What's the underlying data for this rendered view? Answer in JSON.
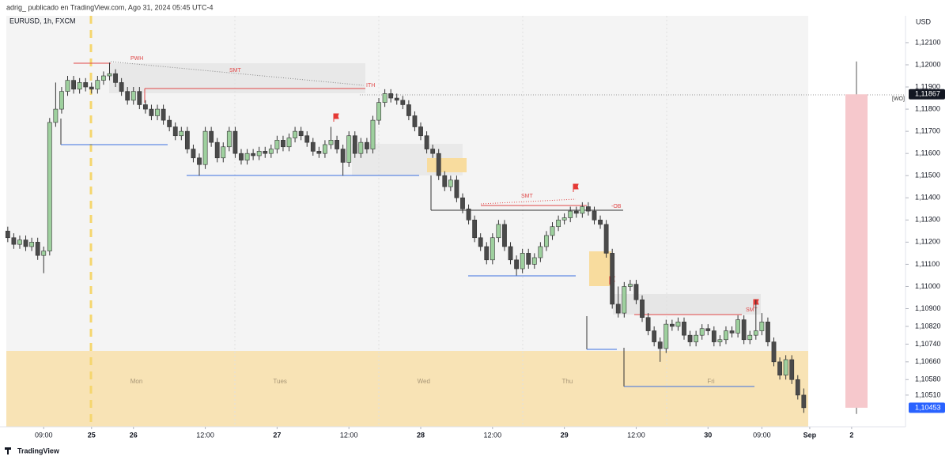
{
  "header": "adrig_ publicado en TradingView.com, Ago 31, 2024 05:45 UTC-4",
  "footer": "TradingView",
  "chart_data": {
    "type": "candlestick",
    "title": "EURUSD, 1h, FXCM",
    "currency": "USD",
    "ylim": [
      1.10367,
      1.12221
    ],
    "yticks": [
      {
        "value": 1.121,
        "label": "1,12100"
      },
      {
        "value": 1.12,
        "label": "1,12000"
      },
      {
        "value": 1.119,
        "label": "1,11900"
      },
      {
        "value": 1.118,
        "label": "1,11800"
      },
      {
        "value": 1.117,
        "label": "1,11700"
      },
      {
        "value": 1.116,
        "label": "1,11600"
      },
      {
        "value": 1.115,
        "label": "1,11500"
      },
      {
        "value": 1.114,
        "label": "1,11400"
      },
      {
        "value": 1.113,
        "label": "1,11300"
      },
      {
        "value": 1.112,
        "label": "1,11200"
      },
      {
        "value": 1.111,
        "label": "1,11100"
      },
      {
        "value": 1.11,
        "label": "1,11000"
      },
      {
        "value": 1.109,
        "label": "1,10900"
      },
      {
        "value": 1.1082,
        "label": "1,10820"
      },
      {
        "value": 1.1074,
        "label": "1,10740"
      },
      {
        "value": 1.1066,
        "label": "1,10660"
      },
      {
        "value": 1.1058,
        "label": "1,10580"
      },
      {
        "value": 1.1051,
        "label": "1,10510"
      }
    ],
    "xlim": [
      -1.3,
      150
    ],
    "xticks": [
      {
        "value": 6,
        "label": "09:00"
      },
      {
        "value": 14,
        "label": "25"
      },
      {
        "value": 21,
        "label": "26"
      },
      {
        "value": 33,
        "label": "12:00"
      },
      {
        "value": 45,
        "label": "27"
      },
      {
        "value": 57,
        "label": "12:00"
      },
      {
        "value": 69,
        "label": "28"
      },
      {
        "value": 81,
        "label": "12:00"
      },
      {
        "value": 93,
        "label": "29"
      },
      {
        "value": 105,
        "label": "12:00"
      },
      {
        "value": 117,
        "label": "30"
      },
      {
        "value": 126,
        "label": "09:00"
      },
      {
        "value": 134,
        "label": "Sep"
      },
      {
        "value": 141,
        "label": "2"
      }
    ],
    "day_labels": [
      {
        "value": 21.5,
        "label": "Mon"
      },
      {
        "value": 45.5,
        "label": "Tues"
      },
      {
        "value": 69.5,
        "label": "Wed"
      },
      {
        "value": 93.5,
        "label": "Thu"
      },
      {
        "value": 117.5,
        "label": "Fri"
      }
    ],
    "annotations": [
      "PWH",
      "SMT",
      "ITH",
      "SMT",
      "-OB",
      "SMT",
      "[WO]"
    ],
    "bull_color": "#9ed09e",
    "bear_color": "#4a4a4a",
    "price_labels": [
      {
        "value": 1.11867,
        "label": "1,11867",
        "color": "#131722"
      },
      {
        "value": 1.10453,
        "label": "1,10453",
        "color": "#2962ff"
      }
    ],
    "weekly_candle": {
      "open": 1.11867,
      "high": 1.12015,
      "low": 1.10425,
      "close": 1.10453,
      "color": "#f6c8cc"
    },
    "ohlc": [
      [
        1.1125,
        1.1127,
        1.112,
        1.1122
      ],
      [
        1.1122,
        1.1124,
        1.1117,
        1.1119
      ],
      [
        1.1119,
        1.1123,
        1.1117,
        1.1121
      ],
      [
        1.1121,
        1.1123,
        1.1116,
        1.1118
      ],
      [
        1.1118,
        1.1122,
        1.1116,
        1.112
      ],
      [
        1.112,
        1.1122,
        1.1112,
        1.1114
      ],
      [
        1.1114,
        1.1118,
        1.1106,
        1.1116
      ],
      [
        1.1116,
        1.1176,
        1.1114,
        1.1174
      ],
      [
        1.1174,
        1.1192,
        1.1172,
        1.118
      ],
      [
        1.118,
        1.119,
        1.1178,
        1.1188
      ],
      [
        1.1188,
        1.1195,
        1.1186,
        1.1193
      ],
      [
        1.1193,
        1.1195,
        1.1187,
        1.1189
      ],
      [
        1.1189,
        1.1194,
        1.1187,
        1.1192
      ],
      [
        1.1192,
        1.1194,
        1.1188,
        1.119
      ],
      [
        1.119,
        1.1192,
        1.1187,
        1.1189
      ],
      [
        1.1189,
        1.1195,
        1.1187,
        1.1193
      ],
      [
        1.1193,
        1.1197,
        1.1191,
        1.1195
      ],
      [
        1.1195,
        1.1201,
        1.1193,
        1.1196
      ],
      [
        1.1196,
        1.1198,
        1.119,
        1.1192
      ],
      [
        1.1192,
        1.1194,
        1.1186,
        1.1188
      ],
      [
        1.1188,
        1.119,
        1.1182,
        1.1184
      ],
      [
        1.1184,
        1.119,
        1.1182,
        1.1188
      ],
      [
        1.1188,
        1.119,
        1.118,
        1.1182
      ],
      [
        1.1182,
        1.1184,
        1.1178,
        1.118
      ],
      [
        1.118,
        1.1182,
        1.1175,
        1.1177
      ],
      [
        1.1177,
        1.1182,
        1.1175,
        1.118
      ],
      [
        1.118,
        1.1182,
        1.1173,
        1.1175
      ],
      [
        1.1175,
        1.1177,
        1.117,
        1.1172
      ],
      [
        1.1172,
        1.1174,
        1.1166,
        1.1168
      ],
      [
        1.1168,
        1.1172,
        1.1166,
        1.117
      ],
      [
        1.117,
        1.1172,
        1.116,
        1.1162
      ],
      [
        1.1162,
        1.1164,
        1.1156,
        1.1158
      ],
      [
        1.1158,
        1.116,
        1.115,
        1.1155
      ],
      [
        1.1155,
        1.1172,
        1.1153,
        1.117
      ],
      [
        1.117,
        1.1172,
        1.1163,
        1.1165
      ],
      [
        1.1165,
        1.1167,
        1.1156,
        1.1158
      ],
      [
        1.1158,
        1.1165,
        1.1156,
        1.1163
      ],
      [
        1.1163,
        1.1172,
        1.1161,
        1.117
      ],
      [
        1.117,
        1.1172,
        1.1158,
        1.116
      ],
      [
        1.116,
        1.1162,
        1.1155,
        1.1157
      ],
      [
        1.1157,
        1.1162,
        1.1155,
        1.116
      ],
      [
        1.116,
        1.1162,
        1.1157,
        1.1159
      ],
      [
        1.1159,
        1.1163,
        1.1157,
        1.1161
      ],
      [
        1.1161,
        1.1163,
        1.1158,
        1.116
      ],
      [
        1.116,
        1.1164,
        1.1158,
        1.1162
      ],
      [
        1.1162,
        1.1168,
        1.116,
        1.1166
      ],
      [
        1.1166,
        1.1168,
        1.1161,
        1.1163
      ],
      [
        1.1163,
        1.1169,
        1.1161,
        1.1167
      ],
      [
        1.1167,
        1.1172,
        1.1165,
        1.117
      ],
      [
        1.117,
        1.1172,
        1.1166,
        1.1168
      ],
      [
        1.1168,
        1.117,
        1.1163,
        1.1165
      ],
      [
        1.1165,
        1.1167,
        1.1159,
        1.1161
      ],
      [
        1.1161,
        1.1163,
        1.1158,
        1.116
      ],
      [
        1.116,
        1.1166,
        1.1158,
        1.1164
      ],
      [
        1.1164,
        1.1172,
        1.1162,
        1.1166
      ],
      [
        1.1166,
        1.1168,
        1.116,
        1.1162
      ],
      [
        1.1162,
        1.1164,
        1.115,
        1.1156
      ],
      [
        1.1156,
        1.117,
        1.1154,
        1.1168
      ],
      [
        1.1168,
        1.117,
        1.1158,
        1.116
      ],
      [
        1.116,
        1.1167,
        1.1158,
        1.1165
      ],
      [
        1.1165,
        1.1167,
        1.116,
        1.1162
      ],
      [
        1.1162,
        1.1177,
        1.116,
        1.1175
      ],
      [
        1.1175,
        1.1185,
        1.1173,
        1.1183
      ],
      [
        1.1183,
        1.1189,
        1.1181,
        1.1187
      ],
      [
        1.1187,
        1.1189,
        1.1183,
        1.1185
      ],
      [
        1.1185,
        1.1187,
        1.1182,
        1.1184
      ],
      [
        1.1184,
        1.1186,
        1.118,
        1.1182
      ],
      [
        1.1182,
        1.1184,
        1.1175,
        1.1177
      ],
      [
        1.1177,
        1.1179,
        1.117,
        1.1172
      ],
      [
        1.1172,
        1.1174,
        1.1166,
        1.1168
      ],
      [
        1.1168,
        1.117,
        1.116,
        1.1162
      ],
      [
        1.1162,
        1.1164,
        1.1158,
        1.116
      ],
      [
        1.116,
        1.1162,
        1.1148,
        1.115
      ],
      [
        1.115,
        1.1152,
        1.1143,
        1.1145
      ],
      [
        1.1145,
        1.115,
        1.1143,
        1.1148
      ],
      [
        1.1148,
        1.115,
        1.1138,
        1.114
      ],
      [
        1.114,
        1.1142,
        1.1133,
        1.1135
      ],
      [
        1.1135,
        1.1137,
        1.1128,
        1.113
      ],
      [
        1.113,
        1.1132,
        1.112,
        1.1122
      ],
      [
        1.1122,
        1.1124,
        1.1116,
        1.1118
      ],
      [
        1.1118,
        1.112,
        1.111,
        1.1112
      ],
      [
        1.1112,
        1.1124,
        1.111,
        1.1122
      ],
      [
        1.1122,
        1.113,
        1.112,
        1.1128
      ],
      [
        1.1128,
        1.113,
        1.1116,
        1.1118
      ],
      [
        1.1118,
        1.112,
        1.111,
        1.1112
      ],
      [
        1.1112,
        1.1114,
        1.1105,
        1.1108
      ],
      [
        1.1108,
        1.1117,
        1.1106,
        1.1115
      ],
      [
        1.1115,
        1.1117,
        1.1108,
        1.111
      ],
      [
        1.111,
        1.1115,
        1.1108,
        1.1113
      ],
      [
        1.1113,
        1.112,
        1.1111,
        1.1118
      ],
      [
        1.1118,
        1.1125,
        1.1116,
        1.1123
      ],
      [
        1.1123,
        1.1129,
        1.1121,
        1.1127
      ],
      [
        1.1127,
        1.1132,
        1.1125,
        1.113
      ],
      [
        1.113,
        1.1133,
        1.1128,
        1.1131
      ],
      [
        1.1131,
        1.1136,
        1.1129,
        1.1134
      ],
      [
        1.1134,
        1.1136,
        1.1131,
        1.1133
      ],
      [
        1.1133,
        1.1138,
        1.1131,
        1.1136
      ],
      [
        1.1136,
        1.1138,
        1.1132,
        1.1134
      ],
      [
        1.1134,
        1.1136,
        1.1128,
        1.113
      ],
      [
        1.113,
        1.1132,
        1.1126,
        1.1128
      ],
      [
        1.1128,
        1.113,
        1.1113,
        1.1115
      ],
      [
        1.1115,
        1.1117,
        1.109,
        1.1092
      ],
      [
        1.1092,
        1.11,
        1.1086,
        1.1088
      ],
      [
        1.1088,
        1.1102,
        1.1086,
        1.11
      ],
      [
        1.11,
        1.1103,
        1.1098,
        1.1101
      ],
      [
        1.1101,
        1.1103,
        1.1092,
        1.1094
      ],
      [
        1.1094,
        1.1096,
        1.1084,
        1.1086
      ],
      [
        1.1086,
        1.1088,
        1.1078,
        1.108
      ],
      [
        1.108,
        1.1082,
        1.1073,
        1.1075
      ],
      [
        1.1075,
        1.1077,
        1.1066,
        1.1072
      ],
      [
        1.1072,
        1.1085,
        1.107,
        1.1083
      ],
      [
        1.1083,
        1.1085,
        1.108,
        1.1082
      ],
      [
        1.1082,
        1.1086,
        1.108,
        1.1084
      ],
      [
        1.1084,
        1.1086,
        1.1076,
        1.1078
      ],
      [
        1.1078,
        1.108,
        1.1073,
        1.1075
      ],
      [
        1.1075,
        1.108,
        1.1073,
        1.1078
      ],
      [
        1.1078,
        1.1083,
        1.1076,
        1.1081
      ],
      [
        1.1081,
        1.1083,
        1.1078,
        1.108
      ],
      [
        1.108,
        1.1082,
        1.1073,
        1.1075
      ],
      [
        1.1075,
        1.1078,
        1.1073,
        1.1076
      ],
      [
        1.1076,
        1.1082,
        1.1074,
        1.108
      ],
      [
        1.108,
        1.1082,
        1.1077,
        1.1079
      ],
      [
        1.1079,
        1.1087,
        1.1077,
        1.1085
      ],
      [
        1.1085,
        1.1087,
        1.1074,
        1.1076
      ],
      [
        1.1076,
        1.108,
        1.1074,
        1.1078
      ],
      [
        1.1078,
        1.1094,
        1.1076,
        1.108
      ],
      [
        1.108,
        1.1088,
        1.1078,
        1.1084
      ],
      [
        1.1084,
        1.1086,
        1.1073,
        1.1075
      ],
      [
        1.1075,
        1.1077,
        1.1064,
        1.1066
      ],
      [
        1.1066,
        1.1068,
        1.1058,
        1.106
      ],
      [
        1.106,
        1.1069,
        1.1058,
        1.1067
      ],
      [
        1.1067,
        1.1069,
        1.1056,
        1.1058
      ],
      [
        1.1058,
        1.106,
        1.1049,
        1.1051
      ],
      [
        1.1051,
        1.1054,
        1.1043,
        1.10453
      ]
    ]
  }
}
